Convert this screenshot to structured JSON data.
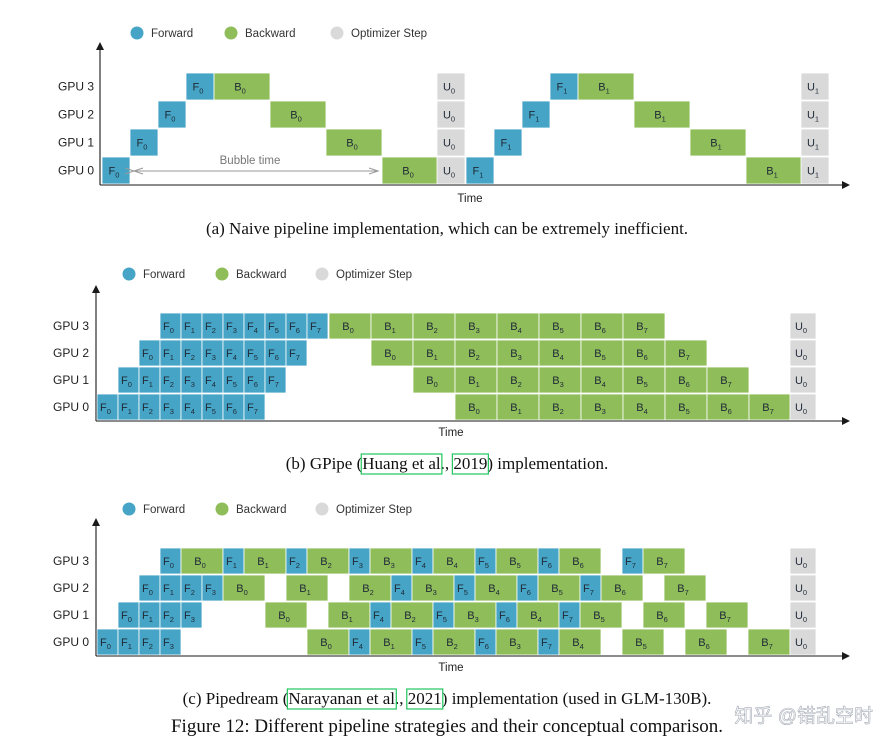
{
  "colors": {
    "forward": "#46a5c6",
    "backward": "#8fbd5a",
    "optimizer": "#d9d9d9",
    "axis": "#1a1a1a",
    "link_box": "#22c55e"
  },
  "watermark": "知乎 @错乱空时",
  "figure_caption": "Figure 12: Different pipeline strategies and their conceptual comparison.",
  "diagrams": [
    {
      "id": "a",
      "legend": [
        "Forward",
        "Backward",
        "Optimizer Step"
      ],
      "gpus": [
        "GPU 3",
        "GPU 2",
        "GPU 1",
        "GPU 0"
      ],
      "time_label": "Time",
      "bubble_label": "Bubble time",
      "caption": {
        "pre": "(a)  Naive pipeline implementation, which can be extremely inefficient.",
        "link1": "",
        "mid": "",
        "link2": "",
        "post": ""
      },
      "blocks": {
        "GPU 3": [
          [
            "F",
            "0"
          ],
          [
            "B",
            "0"
          ]
        ],
        "GPU 2": [
          [
            "F",
            "0"
          ],
          [
            "B",
            "0"
          ]
        ],
        "GPU 1": [
          [
            "F",
            "0"
          ],
          [
            "B",
            "0"
          ]
        ],
        "GPU 0": [
          [
            "F",
            "0"
          ],
          [
            "B",
            "0"
          ]
        ]
      },
      "optimizer": [
        "U",
        "0"
      ],
      "blocks2": {
        "GPU 3": [
          [
            "F",
            "1"
          ],
          [
            "B",
            "1"
          ]
        ],
        "GPU 2": [
          [
            "F",
            "1"
          ],
          [
            "B",
            "1"
          ]
        ],
        "GPU 1": [
          [
            "F",
            "1"
          ],
          [
            "B",
            "1"
          ]
        ],
        "GPU 0": [
          [
            "F",
            "1"
          ],
          [
            "B",
            "1"
          ]
        ]
      },
      "optimizer2": [
        "U",
        "1"
      ]
    },
    {
      "id": "b",
      "legend": [
        "Forward",
        "Backward",
        "Optimizer Step"
      ],
      "gpus": [
        "GPU 3",
        "GPU 2",
        "GPU 1",
        "GPU 0"
      ],
      "time_label": "Time",
      "caption": {
        "pre": "(b)  GPipe (",
        "link1": "Huang et al",
        "mid": "., ",
        "link2": "2019",
        "post": ") implementation."
      },
      "forward_subs": [
        "0",
        "1",
        "2",
        "3",
        "4",
        "5",
        "6",
        "7"
      ],
      "backward_subs": [
        "0",
        "1",
        "2",
        "3",
        "4",
        "5",
        "6",
        "7"
      ],
      "optimizer": [
        "U",
        "0"
      ]
    },
    {
      "id": "c",
      "legend": [
        "Forward",
        "Backward",
        "Optimizer Step"
      ],
      "gpus": [
        "GPU 3",
        "GPU 2",
        "GPU 1",
        "GPU 0"
      ],
      "time_label": "Time",
      "caption": {
        "pre": "(c)  Pipedream (",
        "link1": "Narayanan et al",
        "mid": "., ",
        "link2": "2021",
        "post": ") implementation (used in GLM-130B)."
      },
      "rows": {
        "GPU 3": [
          "F0",
          "B0",
          "F1",
          "B1",
          "F2",
          "B2",
          "F3",
          "B3",
          "F4",
          "B4",
          "F5",
          "B5",
          "F6",
          "B6",
          "F7",
          "B7"
        ],
        "GPU 2": [
          "F0",
          "F1",
          "F2",
          "F3",
          "B0",
          "B1",
          "B2",
          "F4",
          "B3",
          "F5",
          "B4",
          "F6",
          "B5",
          "F7",
          "B6",
          "B7"
        ],
        "GPU 1": [
          "F0",
          "F1",
          "F2",
          "F3",
          "B0",
          "B1",
          "F4",
          "B2",
          "F5",
          "B3",
          "F6",
          "B4",
          "F7",
          "B5",
          "B6",
          "B7"
        ],
        "GPU 0": [
          "F0",
          "F1",
          "F2",
          "F3",
          "B0",
          "F4",
          "B1",
          "F5",
          "B2",
          "F6",
          "B3",
          "F7",
          "B4",
          "B5",
          "B6",
          "B7"
        ]
      },
      "optimizer": [
        "U",
        "0"
      ]
    }
  ]
}
